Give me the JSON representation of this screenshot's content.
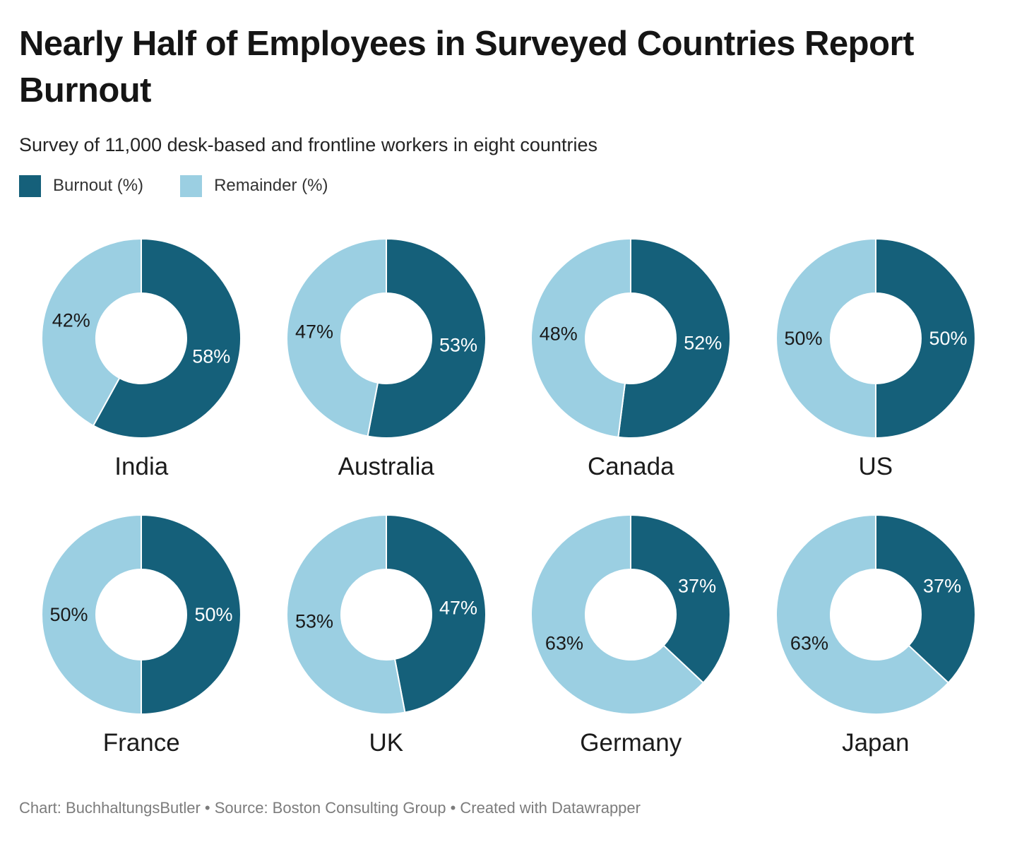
{
  "header": {
    "title": "Nearly Half of Employees in Surveyed Countries Report Burnout",
    "subtitle": "Survey of 11,000 desk-based and frontline workers in eight countries"
  },
  "legend": {
    "items": [
      {
        "id": "burnout",
        "label": "Burnout (%)",
        "color": "#15607a"
      },
      {
        "id": "remainder",
        "label": "Remainder (%)",
        "color": "#9bcfe2"
      }
    ]
  },
  "chart_data": {
    "type": "pie",
    "variant": "donut_small_multiples",
    "title": "Nearly Half of Employees in Surveyed Countries Report Burnout",
    "subtitle": "Survey of 11,000 desk-based and frontline workers in eight countries",
    "unit": "%",
    "start_angle": "top",
    "direction": "clockwise",
    "layout": {
      "rows": 2,
      "cols": 4
    },
    "legend_position": "top-left",
    "series": [
      {
        "name": "Burnout (%)",
        "color": "#15607a"
      },
      {
        "name": "Remainder (%)",
        "color": "#9bcfe2"
      }
    ],
    "categories": [
      "India",
      "Australia",
      "Canada",
      "US",
      "France",
      "UK",
      "Germany",
      "Japan"
    ],
    "countries": [
      {
        "name": "India",
        "burnout": 58,
        "remainder": 42
      },
      {
        "name": "Australia",
        "burnout": 53,
        "remainder": 47
      },
      {
        "name": "Canada",
        "burnout": 52,
        "remainder": 48
      },
      {
        "name": "US",
        "burnout": 50,
        "remainder": 50
      },
      {
        "name": "France",
        "burnout": 50,
        "remainder": 50
      },
      {
        "name": "UK",
        "burnout": 47,
        "remainder": 53
      },
      {
        "name": "Germany",
        "burnout": 37,
        "remainder": 63
      },
      {
        "name": "Japan",
        "burnout": 37,
        "remainder": 63
      }
    ],
    "value_label_colors": {
      "on_burnout": "#ffffff",
      "on_remainder": "#1a1a1a"
    },
    "label_format": "{value}%"
  },
  "footer": {
    "text": "Chart: BuchhaltungsButler • Source: Boston Consulting Group • Created with Datawrapper"
  }
}
